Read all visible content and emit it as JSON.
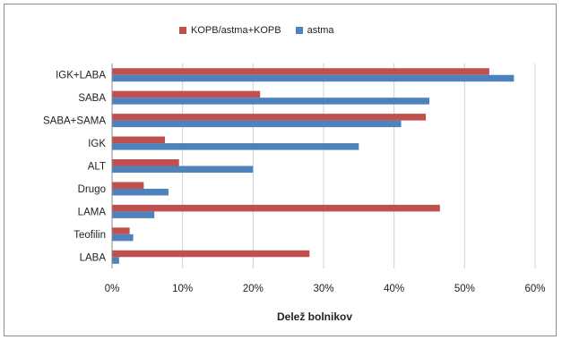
{
  "chart_data": {
    "type": "bar",
    "orientation": "horizontal",
    "categories": [
      "IGK+LABA",
      "SABA",
      "SABA+SAMA",
      "IGK",
      "ALT",
      "Drugo",
      "LAMA",
      "Teofilin",
      "LABA"
    ],
    "series": [
      {
        "name": "KOPB/astma+KOPB",
        "color": "#c0504d",
        "values": [
          53.5,
          21,
          44.5,
          7.5,
          9.5,
          4.5,
          46.5,
          2.5,
          28
        ]
      },
      {
        "name": "astma",
        "color": "#4f81bd",
        "values": [
          57,
          45,
          41,
          35,
          20,
          8,
          6,
          3,
          1
        ]
      }
    ],
    "title": "",
    "xlabel": "Delež bolnikov",
    "ylabel": "",
    "xlim": [
      0,
      60
    ],
    "xticks": [
      "0%",
      "10%",
      "20%",
      "30%",
      "40%",
      "50%",
      "60%"
    ],
    "grid": true,
    "legend_position": "top"
  }
}
